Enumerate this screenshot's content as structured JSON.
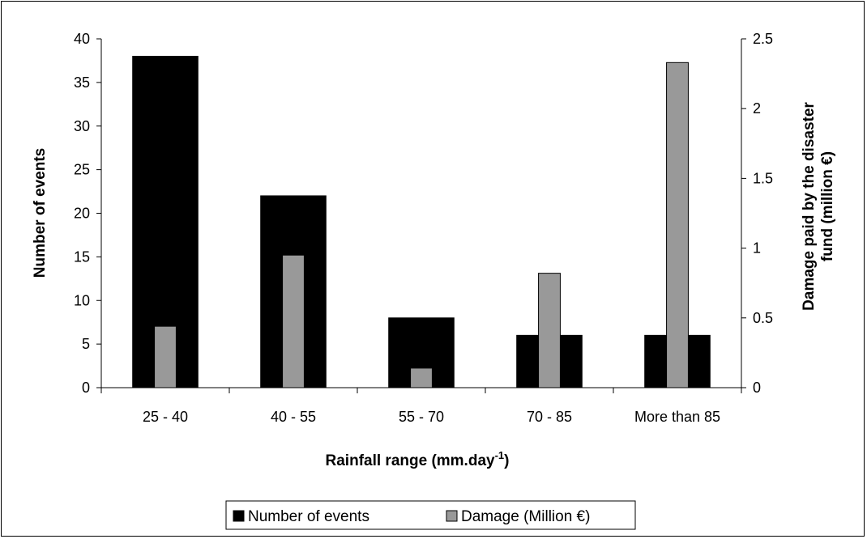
{
  "chart_data": {
    "type": "bar",
    "categories": [
      "25 - 40",
      "40 - 55",
      "55 - 70",
      "70 - 85",
      "More than 85"
    ],
    "series": [
      {
        "name": "Number of events",
        "axis": "left",
        "color": "#000000",
        "values": [
          38,
          22,
          8,
          6,
          6
        ]
      },
      {
        "name": "Damage (Million €)",
        "axis": "right",
        "color": "#999999",
        "values": [
          0.44,
          0.95,
          0.14,
          0.82,
          2.33
        ]
      }
    ],
    "xlabel": "Rainfall range (mm.day",
    "xlabel_superscript": "-1",
    "xlabel_suffix": ")",
    "ylabel": "Number of events",
    "y2label_line1": "Damage paid by the disaster",
    "y2label_line2": "fund (million €)",
    "ylim": [
      0,
      40
    ],
    "y2lim": [
      0,
      2.5
    ],
    "yticks": [
      "0",
      "5",
      "10",
      "15",
      "20",
      "25",
      "30",
      "35",
      "40"
    ],
    "y2ticks": [
      "0",
      "0.5",
      "1",
      "1.5",
      "2",
      "2.5"
    ],
    "legend_position": "bottom",
    "grid": false
  }
}
